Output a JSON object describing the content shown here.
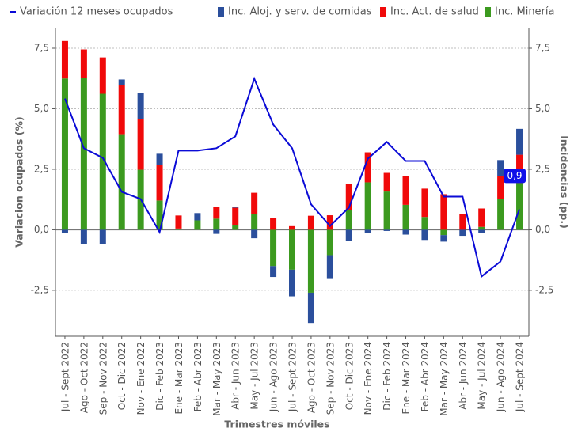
{
  "chart_data": {
    "type": "bar",
    "y_label": "Variacion ocupados (%)",
    "y2_label": "Incidencias (pp.)",
    "x_label": "Trimestres móviles",
    "categories": [
      "Jul - Sept 2022",
      "Ago - Oct 2022",
      "Sep - Nov 2022",
      "Oct - Dic 2022",
      "Nov - Ene 2022",
      "Dic - Feb 2023",
      "Ene - Mar 2023",
      "Feb - Abr 2023",
      "Mar - May 2023",
      "Abr - Jun 2023",
      "May - Jul 2023",
      "Jun - Ago 2023",
      "Jul - Sept 2023",
      "Ago - Oct 2023",
      "Sep - Nov 2023",
      "Oct - Dic 2023",
      "Nov - Ene 2024",
      "Dic - Feb 2024",
      "Ene - Mar 2024",
      "Feb - Abr 2024",
      "Mar - May 2024",
      "Abr - Jun 2024",
      "May - Jul 2024",
      "Jun - Ago 2024",
      "Jul - Sept 2024"
    ],
    "series": [
      {
        "name": "Variación 12 meses ocupados",
        "type": "line",
        "axis": "y",
        "color": "#0b0bd6",
        "values": [
          5.42,
          3.37,
          2.97,
          1.57,
          1.27,
          -0.1,
          3.27,
          3.27,
          3.37,
          3.86,
          6.24,
          4.35,
          3.37,
          1.05,
          0.16,
          0.92,
          2.94,
          3.63,
          2.84,
          2.84,
          1.37,
          1.37,
          -1.93,
          -1.31,
          0.85
        ]
      },
      {
        "name": "Inc. Aloj. y serv. de comidas",
        "type": "bar",
        "axis": "y2",
        "color": "#2b4f9c",
        "values": [
          -0.15,
          -0.6,
          -0.6,
          0.23,
          1.08,
          0.46,
          0,
          0.3,
          -0.17,
          0.05,
          -0.35,
          -0.45,
          -1.1,
          -1.25,
          -0.95,
          -0.45,
          -0.15,
          -0.05,
          -0.2,
          -0.42,
          -0.27,
          -0.25,
          -0.15,
          0.66,
          1.07
        ]
      },
      {
        "name": "Inc. Act. de salud",
        "type": "bar",
        "axis": "y2",
        "color": "#f00a0a",
        "values": [
          1.55,
          1.18,
          1.5,
          2.03,
          2.1,
          1.47,
          0.54,
          0,
          0.49,
          0.71,
          0.88,
          0.48,
          0.15,
          0.58,
          0.6,
          1.1,
          1.24,
          0.77,
          1.19,
          1.17,
          1.47,
          0.64,
          0.76,
          0.95,
          1.17
        ]
      },
      {
        "name": "Inc. Minería",
        "type": "bar",
        "axis": "y2",
        "color": "#3c9a1f",
        "values": [
          6.25,
          6.27,
          5.62,
          3.95,
          2.48,
          1.21,
          0.05,
          0.39,
          0.46,
          0.2,
          0.65,
          -1.5,
          -1.65,
          -2.6,
          -1.05,
          0.8,
          1.96,
          1.58,
          1.03,
          0.53,
          -0.22,
          0,
          0.12,
          1.27,
          1.93
        ]
      }
    ],
    "annotations": [
      {
        "text": "0,9"
      }
    ],
    "ylim": [
      -4.4,
      8.35
    ],
    "yticks": [
      {
        "value": -2.5,
        "label": "-2,5"
      },
      {
        "value": 0,
        "label": "0,0"
      },
      {
        "value": 2.5,
        "label": "2,5"
      },
      {
        "value": 5,
        "label": "5,0"
      },
      {
        "value": 7.5,
        "label": "7,5"
      }
    ],
    "y2lim": [
      -4.4,
      8.35
    ],
    "y2ticks": [
      {
        "value": -2.5,
        "label": "-2,5"
      },
      {
        "value": 0,
        "label": "0,0"
      },
      {
        "value": 2.5,
        "label": "2,5"
      },
      {
        "value": 5,
        "label": "5,0"
      },
      {
        "value": 7.5,
        "label": "7,5"
      }
    ],
    "grid": true
  }
}
